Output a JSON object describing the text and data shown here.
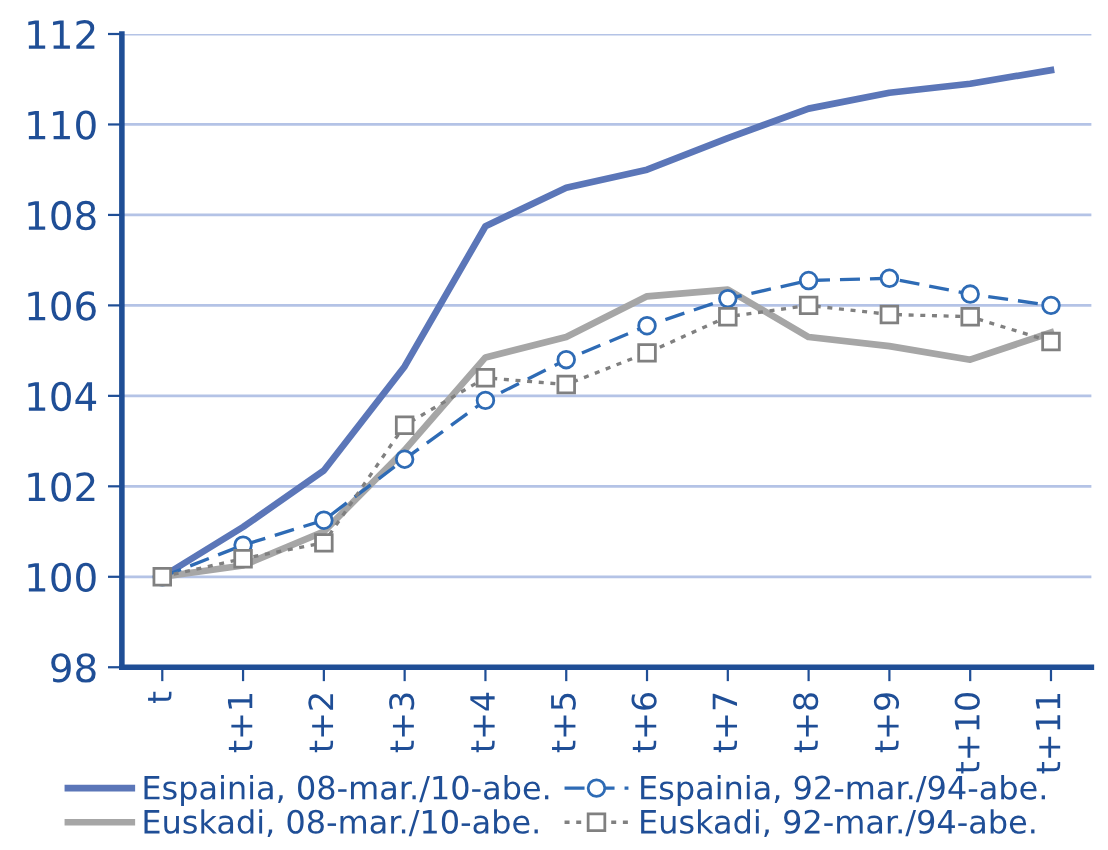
{
  "chart_data": {
    "type": "line",
    "categories": [
      "t",
      "t+1",
      "t+2",
      "t+3",
      "t+4",
      "t+5",
      "t+6",
      "t+7",
      "t+8",
      "t+9",
      "t+10",
      "t+11"
    ],
    "ylim": [
      98,
      112
    ],
    "yticks": [
      98,
      100,
      102,
      104,
      106,
      108,
      110,
      112
    ],
    "grid": "y",
    "legend": "bottom",
    "series": [
      {
        "name": "Espainia, 08-mar./10-abe.",
        "color": "#5b76b8",
        "marker": "none",
        "line_style": "solid",
        "values": [
          100,
          101.1,
          102.35,
          104.65,
          107.75,
          108.6,
          109.0,
          109.7,
          110.35,
          110.7,
          110.9,
          111.2
        ]
      },
      {
        "name": "Euskadi, 08-mar./10-abe.",
        "color": "#a6a6a6",
        "marker": "none",
        "line_style": "solid",
        "values": [
          100,
          100.25,
          101.0,
          102.8,
          104.85,
          105.3,
          106.2,
          106.35,
          105.3,
          105.1,
          104.8,
          105.4
        ]
      },
      {
        "name": "Espainia, 92-mar./94-abe.",
        "color": "#2e6bb5",
        "marker": "circle",
        "line_style": "dashed",
        "values": [
          100,
          100.7,
          101.25,
          102.6,
          103.9,
          104.8,
          105.55,
          106.15,
          106.55,
          106.6,
          106.25,
          106.0
        ]
      },
      {
        "name": "Euskadi, 92-mar./94-abe.",
        "color": "#808080",
        "marker": "square",
        "line_style": "dotted",
        "values": [
          100,
          100.4,
          100.75,
          103.35,
          104.4,
          104.25,
          104.95,
          105.75,
          106.0,
          105.8,
          105.75,
          105.2
        ]
      }
    ]
  }
}
